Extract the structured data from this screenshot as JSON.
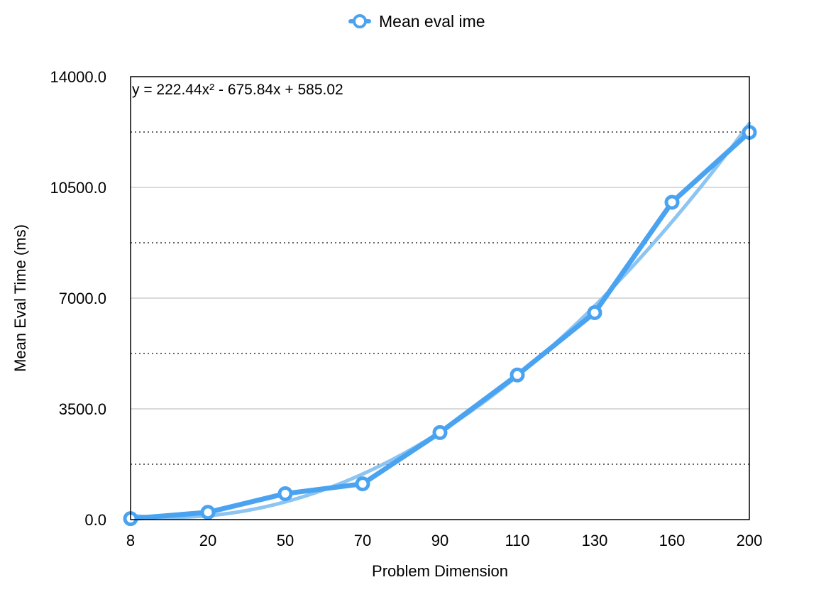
{
  "chart_data": {
    "type": "line",
    "categories": [
      "8",
      "20",
      "50",
      "70",
      "90",
      "110",
      "130",
      "160",
      "200"
    ],
    "series": [
      {
        "name": "Mean eval ime",
        "values": [
          30,
          230,
          820,
          1130,
          2750,
          4570,
          6540,
          10030,
          12240
        ],
        "color": "#4aa3f0"
      }
    ],
    "trendline": {
      "type": "polynomial",
      "order": 2,
      "coefficients": [
        222.44,
        -675.84,
        585.02
      ],
      "equation": "y = 222.44x² - 675.84x + 585.02",
      "color": "#8cc4f2"
    },
    "title": "",
    "xlabel": "Problem Dimension",
    "ylabel": "Mean Eval Time (ms)",
    "ylim": [
      0,
      14000
    ],
    "yticks": [
      "0.0",
      "3500.0",
      "7000.0",
      "10500.0",
      "14000.0"
    ],
    "grid": {
      "major": "solid",
      "minor": "dotted"
    },
    "legend_position": "top-center"
  }
}
